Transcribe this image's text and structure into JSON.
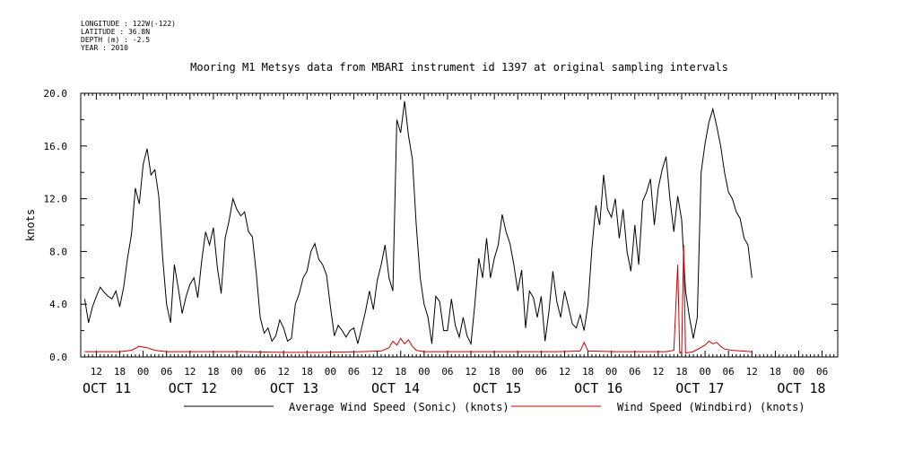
{
  "header": {
    "meta_lines": [
      "LONGITUDE : 122W(-122)",
      "LATITUDE : 36.8N",
      "DEPTH (m) : -2.5",
      "YEAR : 2010"
    ]
  },
  "chart_data": {
    "type": "line",
    "title": "Mooring M1 Metsys data from MBARI instrument id 1397 at original sampling intervals",
    "ylabel": "knots",
    "xlabel": "",
    "ylim": [
      0,
      20
    ],
    "yticks": [
      "0.0",
      "4.0",
      "8.0",
      "12.0",
      "16.0",
      "20.0"
    ],
    "x_unit": "hours since 2010-10-11 00:00",
    "xlim": [
      8,
      202
    ],
    "hour_ticks": [
      {
        "hour": 12,
        "label": "12"
      },
      {
        "hour": 18,
        "label": "18"
      },
      {
        "hour": 24,
        "label": "00"
      },
      {
        "hour": 30,
        "label": "06"
      },
      {
        "hour": 36,
        "label": "12"
      },
      {
        "hour": 42,
        "label": "18"
      },
      {
        "hour": 48,
        "label": "00"
      },
      {
        "hour": 54,
        "label": "06"
      },
      {
        "hour": 60,
        "label": "12"
      },
      {
        "hour": 66,
        "label": "18"
      },
      {
        "hour": 72,
        "label": "00"
      },
      {
        "hour": 78,
        "label": "06"
      },
      {
        "hour": 84,
        "label": "12"
      },
      {
        "hour": 90,
        "label": "18"
      },
      {
        "hour": 96,
        "label": "00"
      },
      {
        "hour": 102,
        "label": "06"
      },
      {
        "hour": 108,
        "label": "12"
      },
      {
        "hour": 114,
        "label": "18"
      },
      {
        "hour": 120,
        "label": "00"
      },
      {
        "hour": 126,
        "label": "06"
      },
      {
        "hour": 132,
        "label": "12"
      },
      {
        "hour": 138,
        "label": "18"
      },
      {
        "hour": 144,
        "label": "00"
      },
      {
        "hour": 150,
        "label": "06"
      },
      {
        "hour": 156,
        "label": "12"
      },
      {
        "hour": 162,
        "label": "18"
      },
      {
        "hour": 168,
        "label": "00"
      },
      {
        "hour": 174,
        "label": "06"
      },
      {
        "hour": 180,
        "label": "12"
      },
      {
        "hour": 186,
        "label": "18"
      },
      {
        "hour": 192,
        "label": "00"
      },
      {
        "hour": 198,
        "label": "06"
      }
    ],
    "day_labels": [
      {
        "hour": 8,
        "label": "OCT 11"
      },
      {
        "hour": 30,
        "label": "OCT 12"
      },
      {
        "hour": 56,
        "label": "OCT 13"
      },
      {
        "hour": 82,
        "label": "OCT 14"
      },
      {
        "hour": 108,
        "label": "OCT 15"
      },
      {
        "hour": 134,
        "label": "OCT 16"
      },
      {
        "hour": 160,
        "label": "OCT 17"
      },
      {
        "hour": 186,
        "label": "OCT 18"
      }
    ],
    "legend_position": "bottom",
    "series": [
      {
        "name": "Average Wind Speed (Sonic) (knots)",
        "color": "#000000",
        "points": [
          [
            9,
            4.4
          ],
          [
            10,
            2.6
          ],
          [
            11,
            3.8
          ],
          [
            12,
            4.6
          ],
          [
            13,
            5.3
          ],
          [
            14,
            4.9
          ],
          [
            15,
            4.6
          ],
          [
            16,
            4.4
          ],
          [
            17,
            5.0
          ],
          [
            18,
            3.8
          ],
          [
            19,
            5.3
          ],
          [
            20,
            7.5
          ],
          [
            21,
            9.3
          ],
          [
            22,
            12.8
          ],
          [
            23,
            11.6
          ],
          [
            24,
            14.6
          ],
          [
            25,
            15.8
          ],
          [
            26,
            13.8
          ],
          [
            27,
            14.2
          ],
          [
            28,
            12.2
          ],
          [
            29,
            7.5
          ],
          [
            30,
            4.0
          ],
          [
            31,
            2.6
          ],
          [
            32,
            7.0
          ],
          [
            33,
            5.2
          ],
          [
            34,
            3.3
          ],
          [
            35,
            4.6
          ],
          [
            36,
            5.5
          ],
          [
            37,
            6.0
          ],
          [
            38,
            4.5
          ],
          [
            39,
            7.3
          ],
          [
            40,
            9.5
          ],
          [
            41,
            8.5
          ],
          [
            42,
            9.8
          ],
          [
            43,
            6.8
          ],
          [
            44,
            4.8
          ],
          [
            45,
            9.0
          ],
          [
            46,
            10.3
          ],
          [
            47,
            12.0
          ],
          [
            48,
            11.2
          ],
          [
            49,
            10.7
          ],
          [
            50,
            11.0
          ],
          [
            51,
            9.5
          ],
          [
            52,
            9.1
          ],
          [
            53,
            6.3
          ],
          [
            54,
            3.0
          ],
          [
            55,
            1.8
          ],
          [
            56,
            2.2
          ],
          [
            57,
            1.2
          ],
          [
            58,
            1.6
          ],
          [
            59,
            2.8
          ],
          [
            60,
            2.2
          ],
          [
            61,
            1.2
          ],
          [
            62,
            1.4
          ],
          [
            63,
            4.0
          ],
          [
            64,
            4.8
          ],
          [
            65,
            6.0
          ],
          [
            66,
            6.5
          ],
          [
            67,
            8.0
          ],
          [
            68,
            8.6
          ],
          [
            69,
            7.4
          ],
          [
            70,
            7.0
          ],
          [
            71,
            6.2
          ],
          [
            72,
            3.8
          ],
          [
            73,
            1.6
          ],
          [
            74,
            2.4
          ],
          [
            75,
            2.0
          ],
          [
            76,
            1.5
          ],
          [
            77,
            2.0
          ],
          [
            78,
            2.2
          ],
          [
            79,
            1.0
          ],
          [
            80,
            2.2
          ],
          [
            81,
            3.5
          ],
          [
            82,
            5.0
          ],
          [
            83,
            3.6
          ],
          [
            84,
            5.8
          ],
          [
            85,
            7.0
          ],
          [
            86,
            8.5
          ],
          [
            87,
            6.0
          ],
          [
            88,
            5.0
          ],
          [
            89,
            18.0
          ],
          [
            90,
            17.0
          ],
          [
            91,
            19.4
          ],
          [
            92,
            16.8
          ],
          [
            93,
            15.0
          ],
          [
            94,
            10.0
          ],
          [
            95,
            6.0
          ],
          [
            96,
            4.0
          ],
          [
            97,
            3.0
          ],
          [
            98,
            1.0
          ],
          [
            99,
            4.6
          ],
          [
            100,
            4.2
          ],
          [
            101,
            2.0
          ],
          [
            102,
            2.0
          ],
          [
            103,
            4.4
          ],
          [
            104,
            2.4
          ],
          [
            105,
            1.5
          ],
          [
            106,
            3.0
          ],
          [
            107,
            1.6
          ],
          [
            108,
            1.0
          ],
          [
            109,
            4.0
          ],
          [
            110,
            7.5
          ],
          [
            111,
            6.0
          ],
          [
            112,
            9.0
          ],
          [
            113,
            6.0
          ],
          [
            114,
            7.5
          ],
          [
            115,
            8.5
          ],
          [
            116,
            10.8
          ],
          [
            117,
            9.5
          ],
          [
            118,
            8.6
          ],
          [
            119,
            7.0
          ],
          [
            120,
            5.0
          ],
          [
            121,
            6.6
          ],
          [
            122,
            2.2
          ],
          [
            123,
            5.0
          ],
          [
            124,
            4.5
          ],
          [
            125,
            3.0
          ],
          [
            126,
            4.6
          ],
          [
            127,
            1.2
          ],
          [
            128,
            3.5
          ],
          [
            129,
            6.5
          ],
          [
            130,
            4.2
          ],
          [
            131,
            3.0
          ],
          [
            132,
            5.0
          ],
          [
            133,
            3.8
          ],
          [
            134,
            2.5
          ],
          [
            135,
            2.2
          ],
          [
            136,
            3.2
          ],
          [
            137,
            2.0
          ],
          [
            138,
            4.0
          ],
          [
            139,
            8.2
          ],
          [
            140,
            11.5
          ],
          [
            141,
            10.0
          ],
          [
            142,
            13.8
          ],
          [
            143,
            11.2
          ],
          [
            144,
            10.6
          ],
          [
            145,
            12.0
          ],
          [
            146,
            9.0
          ],
          [
            147,
            11.2
          ],
          [
            148,
            8.0
          ],
          [
            149,
            6.5
          ],
          [
            150,
            10.0
          ],
          [
            151,
            7.0
          ],
          [
            152,
            11.8
          ],
          [
            153,
            12.5
          ],
          [
            154,
            13.5
          ],
          [
            155,
            10.0
          ],
          [
            156,
            12.8
          ],
          [
            157,
            14.2
          ],
          [
            158,
            15.2
          ],
          [
            159,
            12.0
          ],
          [
            160,
            9.5
          ],
          [
            161,
            12.2
          ],
          [
            162,
            10.4
          ],
          [
            163,
            5.0
          ],
          [
            164,
            3.0
          ],
          [
            165,
            1.4
          ],
          [
            166,
            3.0
          ],
          [
            167,
            14.0
          ],
          [
            168,
            16.2
          ],
          [
            169,
            17.8
          ],
          [
            170,
            18.8
          ],
          [
            171,
            17.5
          ],
          [
            172,
            16.0
          ],
          [
            173,
            14.0
          ],
          [
            174,
            12.5
          ],
          [
            175,
            12.0
          ],
          [
            176,
            11.0
          ],
          [
            177,
            10.5
          ],
          [
            178,
            9.0
          ],
          [
            179,
            8.5
          ],
          [
            180,
            6.0
          ]
        ]
      },
      {
        "name": "Wind Speed (Windbird) (knots)",
        "color": "#cc0000",
        "points": [
          [
            9,
            0.4
          ],
          [
            14,
            0.4
          ],
          [
            18,
            0.4
          ],
          [
            21,
            0.5
          ],
          [
            23,
            0.8
          ],
          [
            25,
            0.7
          ],
          [
            27,
            0.5
          ],
          [
            30,
            0.4
          ],
          [
            40,
            0.4
          ],
          [
            50,
            0.4
          ],
          [
            60,
            0.35
          ],
          [
            70,
            0.35
          ],
          [
            80,
            0.4
          ],
          [
            85,
            0.45
          ],
          [
            87,
            0.7
          ],
          [
            88,
            1.2
          ],
          [
            89,
            0.9
          ],
          [
            90,
            1.4
          ],
          [
            91,
            1.0
          ],
          [
            92,
            1.3
          ],
          [
            93,
            0.8
          ],
          [
            94,
            0.5
          ],
          [
            96,
            0.4
          ],
          [
            105,
            0.4
          ],
          [
            115,
            0.4
          ],
          [
            125,
            0.4
          ],
          [
            130,
            0.4
          ],
          [
            136,
            0.45
          ],
          [
            137,
            1.1
          ],
          [
            138,
            0.45
          ],
          [
            145,
            0.4
          ],
          [
            152,
            0.4
          ],
          [
            158,
            0.4
          ],
          [
            160,
            0.5
          ],
          [
            161,
            7.0
          ],
          [
            161.5,
            0.3
          ],
          [
            162,
            0.4
          ],
          [
            162.5,
            8.5
          ],
          [
            163,
            0.3
          ],
          [
            165,
            0.4
          ],
          [
            168,
            0.9
          ],
          [
            169,
            1.2
          ],
          [
            170,
            1.0
          ],
          [
            171,
            1.1
          ],
          [
            172,
            0.8
          ],
          [
            173,
            0.6
          ],
          [
            175,
            0.5
          ],
          [
            180,
            0.4
          ]
        ]
      }
    ]
  }
}
